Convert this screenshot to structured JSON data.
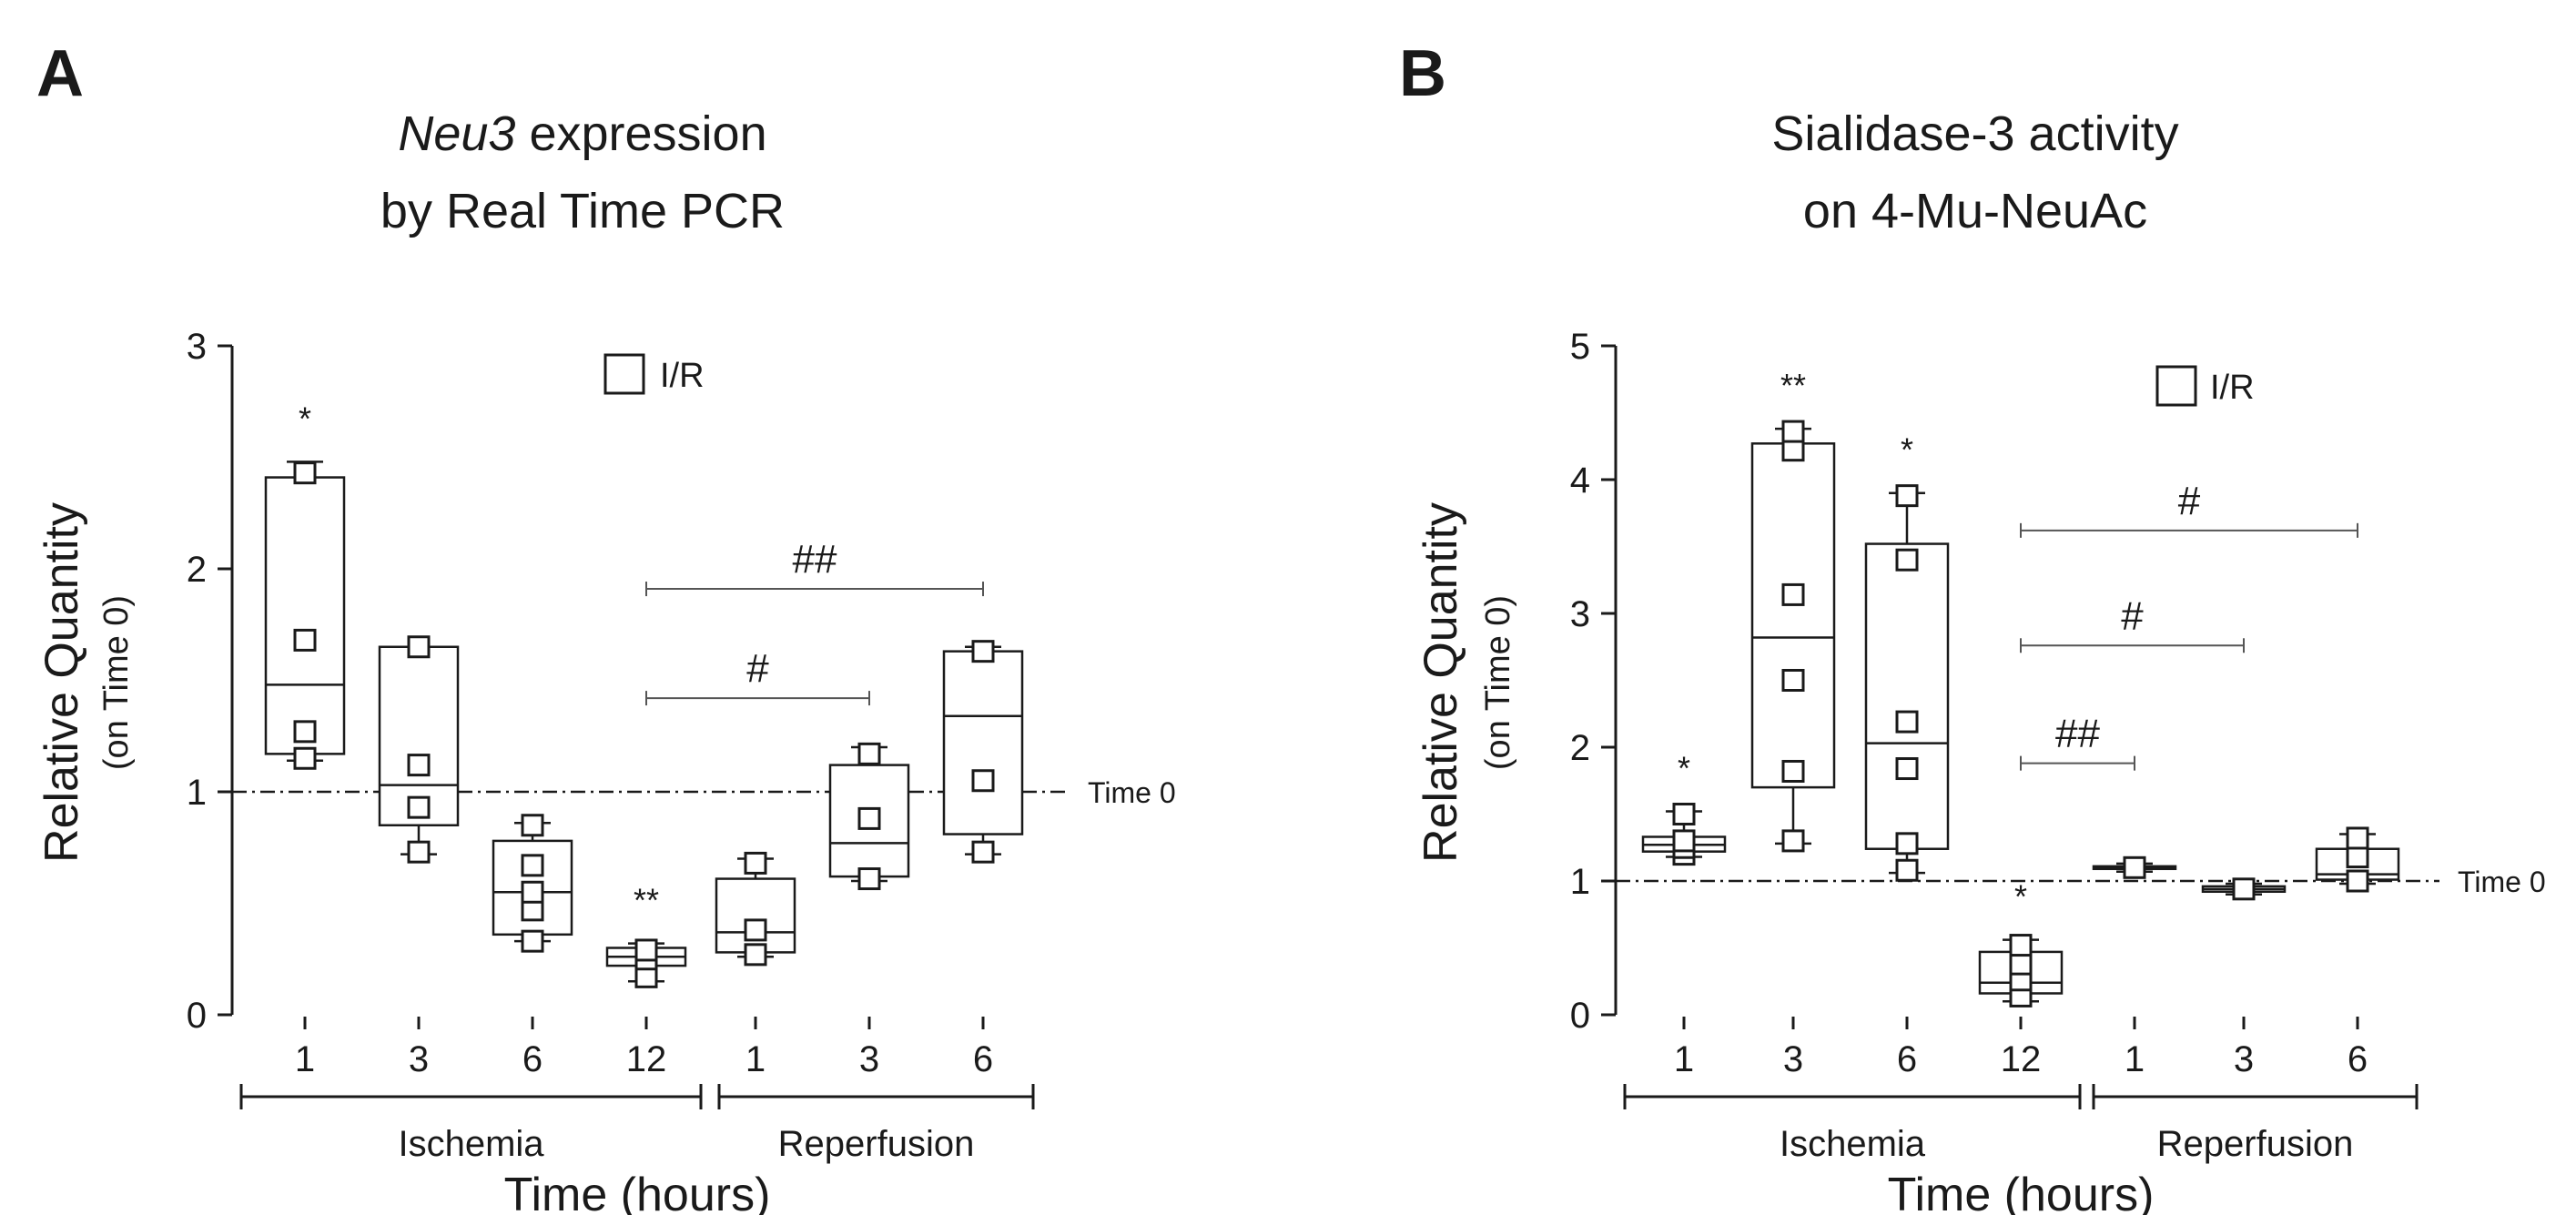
{
  "chart_data": [
    {
      "panel_label": "A",
      "type": "box",
      "title_italic": "Neu3",
      "title_rest": " expression",
      "title_line2": "by Real Time PCR",
      "ylabel": "Relative Quantity",
      "ylabel_sub": "(on Time 0)",
      "xlabel": "Time (hours)",
      "ylim": [
        0,
        3
      ],
      "yticks": [
        "0",
        "1",
        "2",
        "3"
      ],
      "legend": "I/R",
      "legend_position": "top-center",
      "reference_line": {
        "y": 1,
        "label": "Time 0"
      },
      "groups": [
        {
          "label": "Ischemia",
          "categories": [
            "1",
            "3",
            "6",
            "12"
          ]
        },
        {
          "label": "Reperfusion",
          "categories": [
            "1",
            "3",
            "6"
          ]
        }
      ],
      "boxes": [
        {
          "group": "Ischemia",
          "time": "1",
          "min": 1.14,
          "q1": 1.17,
          "median": 1.48,
          "q3": 2.41,
          "max": 2.48,
          "points": [
            1.15,
            1.27,
            1.68,
            2.43
          ],
          "significance": "*"
        },
        {
          "group": "Ischemia",
          "time": "3",
          "min": 0.72,
          "q1": 0.85,
          "median": 1.03,
          "q3": 1.65,
          "max": 1.65,
          "points": [
            0.73,
            0.93,
            1.12,
            1.65
          ],
          "significance": ""
        },
        {
          "group": "Ischemia",
          "time": "6",
          "min": 0.33,
          "q1": 0.36,
          "median": 0.55,
          "q3": 0.78,
          "max": 0.86,
          "points": [
            0.33,
            0.47,
            0.55,
            0.67,
            0.85
          ],
          "significance": ""
        },
        {
          "group": "Ischemia",
          "time": "12",
          "min": 0.15,
          "q1": 0.22,
          "median": 0.26,
          "q3": 0.3,
          "max": 0.32,
          "points": [
            0.17,
            0.25,
            0.29
          ],
          "significance": "**"
        },
        {
          "group": "Reperfusion",
          "time": "1",
          "min": 0.26,
          "q1": 0.28,
          "median": 0.37,
          "q3": 0.61,
          "max": 0.7,
          "points": [
            0.27,
            0.38,
            0.68
          ],
          "significance": ""
        },
        {
          "group": "Reperfusion",
          "time": "3",
          "min": 0.6,
          "q1": 0.62,
          "median": 0.77,
          "q3": 1.12,
          "max": 1.2,
          "points": [
            0.61,
            0.88,
            1.17
          ],
          "significance": ""
        },
        {
          "group": "Reperfusion",
          "time": "6",
          "min": 0.72,
          "q1": 0.81,
          "median": 1.34,
          "q3": 1.63,
          "max": 1.65,
          "points": [
            0.73,
            1.05,
            1.63
          ],
          "significance": ""
        }
      ],
      "comparisons": [
        {
          "from": "Ischemia 12",
          "to": "Reperfusion 3",
          "label": "#",
          "y": 1.42
        },
        {
          "from": "Ischemia 12",
          "to": "Reperfusion 6",
          "label": "##",
          "y": 1.91
        }
      ]
    },
    {
      "panel_label": "B",
      "type": "box",
      "title_line1": "Sialidase-3 activity",
      "title_line2": "on 4-Mu-NeuAc",
      "ylabel": "Relative Quantity",
      "ylabel_sub": "(on Time 0)",
      "xlabel": "Time (hours)",
      "ylim": [
        0,
        5
      ],
      "yticks": [
        "0",
        "1",
        "2",
        "3",
        "4",
        "5"
      ],
      "legend": "I/R",
      "legend_position": "top-right",
      "reference_line": {
        "y": 1,
        "label": "Time 0"
      },
      "groups": [
        {
          "label": "Ischemia",
          "categories": [
            "1",
            "3",
            "6",
            "12"
          ]
        },
        {
          "label": "Reperfusion",
          "categories": [
            "1",
            "3",
            "6"
          ]
        }
      ],
      "boxes": [
        {
          "group": "Ischemia",
          "time": "1",
          "min": 1.18,
          "q1": 1.22,
          "median": 1.27,
          "q3": 1.33,
          "max": 1.52,
          "points": [
            1.2,
            1.25,
            1.3,
            1.5
          ],
          "significance": "*"
        },
        {
          "group": "Ischemia",
          "time": "3",
          "min": 1.28,
          "q1": 1.7,
          "median": 2.82,
          "q3": 4.27,
          "max": 4.38,
          "points": [
            1.3,
            1.82,
            2.5,
            3.14,
            4.22,
            4.36
          ],
          "significance": "**"
        },
        {
          "group": "Ischemia",
          "time": "6",
          "min": 1.06,
          "q1": 1.24,
          "median": 2.03,
          "q3": 3.52,
          "max": 3.9,
          "points": [
            1.08,
            1.28,
            1.84,
            2.19,
            3.4,
            3.88
          ],
          "significance": "*"
        },
        {
          "group": "Ischemia",
          "time": "12",
          "min": 0.1,
          "q1": 0.16,
          "median": 0.24,
          "q3": 0.47,
          "max": 0.56,
          "points": [
            0.14,
            0.26,
            0.38,
            0.52
          ],
          "significance": "*"
        },
        {
          "group": "Reperfusion",
          "time": "1",
          "min": 1.07,
          "q1": 1.09,
          "median": 1.1,
          "q3": 1.11,
          "max": 1.13,
          "points": [
            1.1
          ],
          "significance": ""
        },
        {
          "group": "Reperfusion",
          "time": "3",
          "min": 0.9,
          "q1": 0.92,
          "median": 0.94,
          "q3": 0.96,
          "max": 0.98,
          "points": [
            0.94
          ],
          "significance": ""
        },
        {
          "group": "Reperfusion",
          "time": "6",
          "min": 0.98,
          "q1": 1.01,
          "median": 1.05,
          "q3": 1.24,
          "max": 1.35,
          "points": [
            1.0,
            1.18,
            1.32
          ],
          "significance": ""
        }
      ],
      "comparisons": [
        {
          "from": "Ischemia 12",
          "to": "Reperfusion 1",
          "label": "##",
          "y": 1.88
        },
        {
          "from": "Ischemia 12",
          "to": "Reperfusion 3",
          "label": "#",
          "y": 2.76
        },
        {
          "from": "Ischemia 12",
          "to": "Reperfusion 6",
          "label": "#",
          "y": 3.62
        }
      ]
    }
  ]
}
